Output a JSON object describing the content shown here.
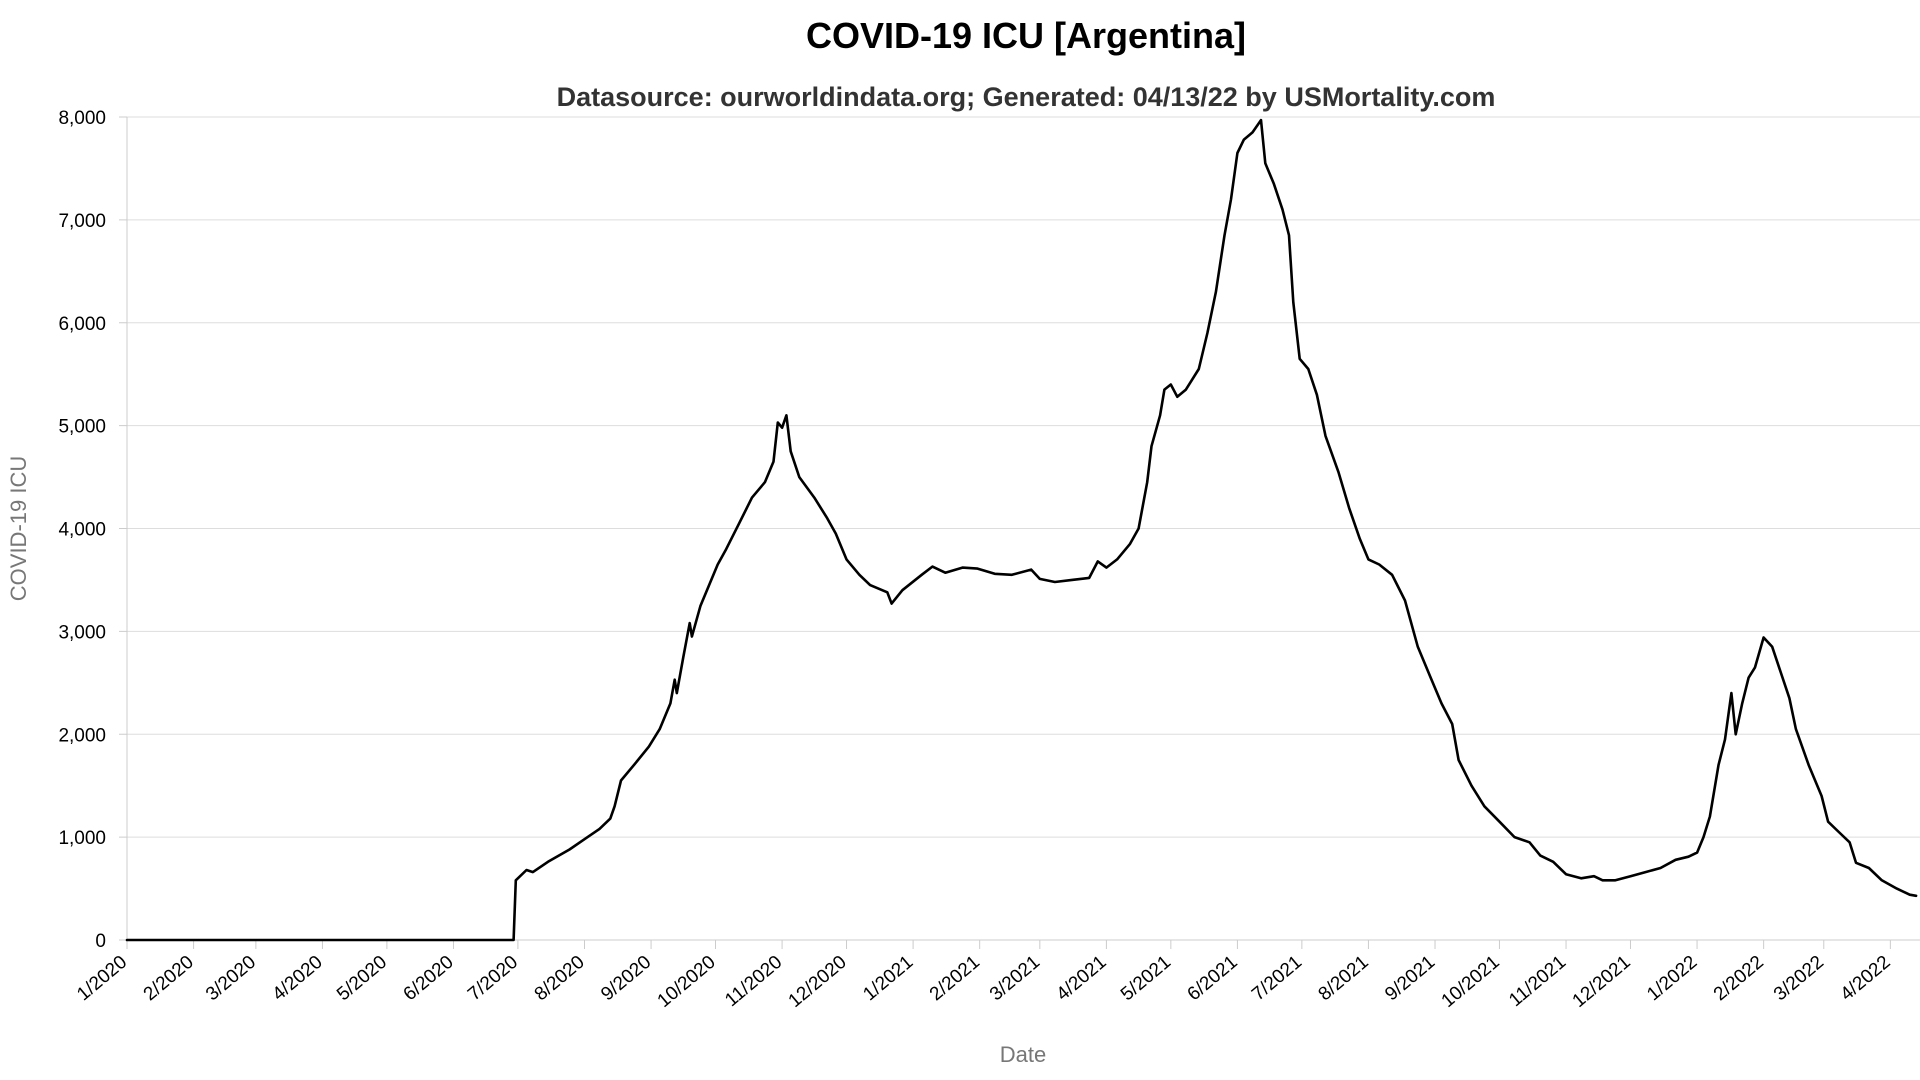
{
  "chart_data": {
    "type": "line",
    "title": "COVID-19 ICU [Argentina]",
    "subtitle": "Datasource: ourworldindata.org; Generated: 04/13/22 by USMortality.com",
    "xlabel": "Date",
    "ylabel": "COVID-19 ICU",
    "x_tick_labels": [
      "1/2020",
      "2/2020",
      "3/2020",
      "4/2020",
      "5/2020",
      "6/2020",
      "7/2020",
      "8/2020",
      "9/2020",
      "10/2020",
      "11/2020",
      "12/2020",
      "1/2021",
      "2/2021",
      "3/2021",
      "4/2021",
      "5/2021",
      "6/2021",
      "7/2021",
      "8/2021",
      "9/2021",
      "10/2021",
      "11/2021",
      "12/2021",
      "1/2022",
      "2/2022",
      "3/2022",
      "4/2022"
    ],
    "y_ticks": [
      0,
      1000,
      2000,
      3000,
      4000,
      5000,
      6000,
      7000,
      8000
    ],
    "y_tick_labels": [
      "0",
      "1,000",
      "2,000",
      "3,000",
      "4,000",
      "5,000",
      "6,000",
      "7,000",
      "8,000"
    ],
    "ylim": [
      0,
      8000
    ],
    "xlim": [
      "2020-01-01",
      "2022-04-13"
    ],
    "grid": "horizontal",
    "series_color": "#000000",
    "series": [
      {
        "values": [
          [
            "2020-01-01",
            0
          ],
          [
            "2020-06-29",
            0
          ],
          [
            "2020-06-30",
            580
          ],
          [
            "2020-07-05",
            680
          ],
          [
            "2020-07-08",
            660
          ],
          [
            "2020-07-15",
            760
          ],
          [
            "2020-07-25",
            880
          ],
          [
            "2020-08-01",
            980
          ],
          [
            "2020-08-08",
            1080
          ],
          [
            "2020-08-13",
            1180
          ],
          [
            "2020-08-15",
            1300
          ],
          [
            "2020-08-18",
            1550
          ],
          [
            "2020-08-24",
            1700
          ],
          [
            "2020-08-31",
            1880
          ],
          [
            "2020-09-05",
            2050
          ],
          [
            "2020-09-10",
            2300
          ],
          [
            "2020-09-12",
            2530
          ],
          [
            "2020-09-13",
            2400
          ],
          [
            "2020-09-16",
            2750
          ],
          [
            "2020-09-19",
            3080
          ],
          [
            "2020-09-20",
            2950
          ],
          [
            "2020-09-24",
            3250
          ],
          [
            "2020-09-28",
            3450
          ],
          [
            "2020-10-02",
            3650
          ],
          [
            "2020-10-06",
            3800
          ],
          [
            "2020-10-12",
            4050
          ],
          [
            "2020-10-18",
            4300
          ],
          [
            "2020-10-24",
            4450
          ],
          [
            "2020-10-28",
            4650
          ],
          [
            "2020-10-30",
            5030
          ],
          [
            "2020-11-01",
            4980
          ],
          [
            "2020-11-03",
            5100
          ],
          [
            "2020-11-05",
            4750
          ],
          [
            "2020-11-09",
            4500
          ],
          [
            "2020-11-16",
            4300
          ],
          [
            "2020-11-22",
            4100
          ],
          [
            "2020-11-26",
            3950
          ],
          [
            "2020-12-01",
            3700
          ],
          [
            "2020-12-07",
            3550
          ],
          [
            "2020-12-12",
            3450
          ],
          [
            "2020-12-20",
            3380
          ],
          [
            "2020-12-22",
            3270
          ],
          [
            "2020-12-27",
            3400
          ],
          [
            "2021-01-05",
            3550
          ],
          [
            "2021-01-10",
            3630
          ],
          [
            "2021-01-16",
            3570
          ],
          [
            "2021-01-24",
            3620
          ],
          [
            "2021-01-31",
            3610
          ],
          [
            "2021-02-08",
            3560
          ],
          [
            "2021-02-16",
            3550
          ],
          [
            "2021-02-25",
            3600
          ],
          [
            "2021-03-01",
            3510
          ],
          [
            "2021-03-08",
            3480
          ],
          [
            "2021-03-16",
            3500
          ],
          [
            "2021-03-24",
            3520
          ],
          [
            "2021-03-28",
            3680
          ],
          [
            "2021-04-01",
            3620
          ],
          [
            "2021-04-06",
            3700
          ],
          [
            "2021-04-12",
            3850
          ],
          [
            "2021-04-16",
            4000
          ],
          [
            "2021-04-20",
            4450
          ],
          [
            "2021-04-22",
            4800
          ],
          [
            "2021-04-26",
            5100
          ],
          [
            "2021-04-28",
            5350
          ],
          [
            "2021-05-01",
            5400
          ],
          [
            "2021-05-04",
            5280
          ],
          [
            "2021-05-08",
            5350
          ],
          [
            "2021-05-14",
            5550
          ],
          [
            "2021-05-18",
            5900
          ],
          [
            "2021-05-22",
            6300
          ],
          [
            "2021-05-26",
            6850
          ],
          [
            "2021-05-29",
            7200
          ],
          [
            "2021-06-01",
            7650
          ],
          [
            "2021-06-04",
            7780
          ],
          [
            "2021-06-08",
            7850
          ],
          [
            "2021-06-12",
            7970
          ],
          [
            "2021-06-14",
            7550
          ],
          [
            "2021-06-18",
            7350
          ],
          [
            "2021-06-22",
            7100
          ],
          [
            "2021-06-25",
            6850
          ],
          [
            "2021-06-27",
            6200
          ],
          [
            "2021-06-30",
            5650
          ],
          [
            "2021-07-04",
            5550
          ],
          [
            "2021-07-08",
            5300
          ],
          [
            "2021-07-12",
            4900
          ],
          [
            "2021-07-18",
            4550
          ],
          [
            "2021-07-23",
            4200
          ],
          [
            "2021-07-28",
            3900
          ],
          [
            "2021-08-01",
            3700
          ],
          [
            "2021-08-06",
            3650
          ],
          [
            "2021-08-12",
            3550
          ],
          [
            "2021-08-18",
            3300
          ],
          [
            "2021-08-24",
            2850
          ],
          [
            "2021-08-30",
            2550
          ],
          [
            "2021-09-04",
            2300
          ],
          [
            "2021-09-09",
            2100
          ],
          [
            "2021-09-12",
            1750
          ],
          [
            "2021-09-18",
            1500
          ],
          [
            "2021-09-24",
            1300
          ],
          [
            "2021-10-01",
            1150
          ],
          [
            "2021-10-08",
            1000
          ],
          [
            "2021-10-15",
            950
          ],
          [
            "2021-10-20",
            820
          ],
          [
            "2021-10-26",
            760
          ],
          [
            "2021-11-01",
            640
          ],
          [
            "2021-11-08",
            600
          ],
          [
            "2021-11-14",
            620
          ],
          [
            "2021-11-18",
            580
          ],
          [
            "2021-11-24",
            580
          ],
          [
            "2021-12-01",
            620
          ],
          [
            "2021-12-08",
            660
          ],
          [
            "2021-12-15",
            700
          ],
          [
            "2021-12-22",
            780
          ],
          [
            "2021-12-28",
            810
          ],
          [
            "2022-01-01",
            850
          ],
          [
            "2022-01-04",
            1000
          ],
          [
            "2022-01-07",
            1200
          ],
          [
            "2022-01-11",
            1700
          ],
          [
            "2022-01-14",
            1950
          ],
          [
            "2022-01-17",
            2400
          ],
          [
            "2022-01-19",
            2000
          ],
          [
            "2022-01-22",
            2300
          ],
          [
            "2022-01-25",
            2550
          ],
          [
            "2022-01-28",
            2650
          ],
          [
            "2022-02-01",
            2940
          ],
          [
            "2022-02-05",
            2850
          ],
          [
            "2022-02-09",
            2600
          ],
          [
            "2022-02-13",
            2350
          ],
          [
            "2022-02-16",
            2050
          ],
          [
            "2022-02-22",
            1700
          ],
          [
            "2022-02-28",
            1400
          ],
          [
            "2022-03-03",
            1150
          ],
          [
            "2022-03-08",
            1050
          ],
          [
            "2022-03-13",
            950
          ],
          [
            "2022-03-16",
            750
          ],
          [
            "2022-03-22",
            700
          ],
          [
            "2022-03-28",
            580
          ],
          [
            "2022-04-04",
            500
          ],
          [
            "2022-04-10",
            440
          ],
          [
            "2022-04-13",
            430
          ]
        ]
      }
    ]
  }
}
